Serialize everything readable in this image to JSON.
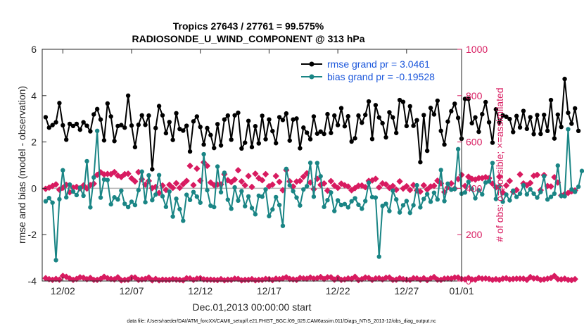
{
  "chart_data": {
    "type": "line",
    "title": [
      "Tropics 27643 / 27761 = 99.575%",
      "RADIOSONDE_U_WIND_COMPONENT @ 313 hPa"
    ],
    "xlabel": "Dec.01,2013 00:00:00 start",
    "ylabel_left": "rmse and bias (model - observation)",
    "ylabel_right": "# of obs: o=possible; ×=assimilated",
    "footer": "data file: /Users/raeder/DAI/ATM_forcXX/CAM6_setup/f.e21.FHIST_BGC.f09_025.CAM6assim.011/Diags_NTrS_2013-12/obs_diag_output.nc",
    "xlim": [
      0.5,
      31
    ],
    "ylim_left": [
      -4,
      6
    ],
    "ylim_right": [
      0,
      1000
    ],
    "x_ticks": [
      {
        "value": 2,
        "label": "12/02"
      },
      {
        "value": 7,
        "label": "12/07"
      },
      {
        "value": 12,
        "label": "12/12"
      },
      {
        "value": 17,
        "label": "12/17"
      },
      {
        "value": 22,
        "label": "12/22"
      },
      {
        "value": 27,
        "label": "12/27"
      },
      {
        "value": 31,
        "label": "01/01"
      }
    ],
    "y_ticks_left": [
      -4,
      -2,
      0,
      2,
      4,
      6
    ],
    "y_ticks_right": [
      0,
      200,
      400,
      600,
      800,
      1000
    ],
    "legend": {
      "position": "top-right",
      "entries": [
        "rmse grand pr = 3.0461",
        "bias grand pr = -0.19528"
      ]
    },
    "colors": {
      "rmse": "#000000",
      "bias": "#1a8585",
      "obs": "#d81b60",
      "legend_text": "#1a56db",
      "zero_line": "#b4b4b4"
    },
    "x_start": 0.75,
    "x_step": 0.25,
    "series": [
      {
        "name": "rmse",
        "axis": "left",
        "values": [
          3.07,
          2.62,
          2.73,
          2.85,
          3.68,
          2.72,
          2.1,
          2.78,
          2.69,
          2.78,
          2.53,
          2.85,
          2.7,
          2.46,
          3.19,
          3.42,
          2.97,
          2.07,
          3.66,
          3.1,
          2.04,
          2.69,
          2.73,
          2.62,
          4.0,
          2.71,
          1.78,
          2.74,
          3.15,
          2.74,
          3.14,
          0.82,
          2.6,
          3.55,
          3.15,
          2.38,
          2.86,
          2.09,
          3.24,
          2.56,
          2.49,
          2.7,
          1.59,
          2.89,
          3.1,
          2.65,
          1.89,
          2.6,
          2.3,
          1.74,
          2.77,
          1.85,
          2.97,
          3.14,
          2.1,
          3.15,
          3.26,
          1.72,
          1.97,
          2.91,
          1.78,
          2.68,
          1.94,
          3.13,
          2.12,
          2.97,
          2.47,
          1.95,
          3.07,
          2.95,
          3.23,
          2.06,
          2.97,
          3.01,
          1.73,
          2.62,
          2.4,
          2.12,
          3.1,
          2.36,
          2.45,
          2.35,
          3.2,
          2.39,
          3.14,
          2.73,
          3.46,
          2.68,
          3.11,
          2.02,
          2.16,
          3.14,
          2.83,
          3.17,
          3.75,
          2.13,
          3.59,
          3.06,
          2.81,
          2.2,
          3.28,
          3.06,
          2.39,
          3.81,
          3.73,
          2.69,
          3.54,
          2.7,
          2.94,
          1.13,
          3.16,
          1.62,
          3.47,
          3.19,
          3.78,
          2.48,
          1.89,
          2.88,
          3.33,
          3.65,
          3.04,
          2.14,
          3.86,
          3.86,
          2.81,
          3.06,
          2.44,
          3.2,
          3.72,
          2.85,
          1.97,
          3.41,
          2.84,
          3.15,
          3.09,
          2.99,
          2.43,
          3.12,
          2.63,
          3.34,
          2.57,
          3.07,
          2.34,
          3.16,
          2.35,
          3.17,
          2.48,
          3.81,
          2.15,
          3.18,
          2.65,
          4.72,
          3.26,
          2.79,
          3.45,
          2.48
        ]
      },
      {
        "name": "bias",
        "axis": "left",
        "values": [
          -0.56,
          -0.42,
          -0.62,
          -3.1,
          -0.47,
          0.78,
          -0.39,
          0.16,
          -0.14,
          -0.29,
          0.03,
          -0.32,
          1.17,
          -0.82,
          0.47,
          2.48,
          -0.4,
          0.38,
          0.36,
          -0.69,
          -0.39,
          -0.48,
          -0.1,
          -0.67,
          -0.81,
          -0.58,
          -0.72,
          -0.08,
          0.72,
          -0.6,
          0.56,
          -0.51,
          -0.27,
          0.57,
          -0.34,
          -0.8,
          -0.14,
          -1.22,
          -0.45,
          -0.9,
          -1.4,
          -0.28,
          -0.5,
          -0.16,
          -0.36,
          -0.62,
          1.47,
          -0.08,
          -0.75,
          -0.81,
          0.94,
          -0.17,
          0.67,
          -0.49,
          -0.88,
          0.04,
          -0.53,
          -0.12,
          -0.77,
          -0.35,
          -0.85,
          -1.12,
          -0.32,
          -0.36,
          -0.05,
          -1.2,
          -0.91,
          -0.38,
          -0.72,
          -1.62,
          0.84,
          0.13,
          -0.12,
          -0.4,
          -0.74,
          -0.05,
          0.09,
          1.1,
          -0.36,
          1.09,
          0.52,
          -0.8,
          -0.51,
          -0.18,
          -0.98,
          -0.52,
          -0.72,
          -0.68,
          -0.82,
          -0.56,
          -0.43,
          -0.71,
          -0.88,
          -0.55,
          0.24,
          -0.38,
          -0.4,
          -2.95,
          -0.76,
          -0.67,
          -0.98,
          -0.1,
          -0.48,
          -1.04,
          -0.73,
          -0.55,
          -1.06,
          -0.73,
          0.13,
          -0.82,
          -0.46,
          -0.25,
          -0.58,
          -0.19,
          -0.48,
          0.79,
          -0.55,
          0.2,
          -0.06,
          -0.03,
          1.69,
          -0.23,
          -0.18,
          0.28,
          -0.03,
          -0.43,
          -0.09,
          -0.26,
          0.25,
          0.3,
          1.09,
          -0.46,
          0.09,
          -0.58,
          -0.27,
          -0.52,
          -0.1,
          -0.37,
          -0.23,
          0.13,
          -0.26,
          -0.04,
          -0.23,
          -0.4,
          -0.16,
          0.52,
          -0.48,
          -0.37,
          -0.23,
          0.98,
          -0.33,
          -0.34,
          2.55,
          -0.05,
          -0.15,
          0.07,
          0.75
        ]
      },
      {
        "name": "obs_assimilated",
        "axis": "right",
        "values": [
          398,
          403,
          410,
          417,
          394,
          402,
          415,
          383,
          403,
          406,
          400,
          412,
          399,
          414,
          420,
          458,
          469,
          460,
          462,
          461,
          470,
          455,
          449,
          461,
          463,
          443,
          430,
          470,
          439,
          416,
          432,
          401,
          406,
          380,
          412,
          393,
          415,
          402,
          422,
          402,
          418,
          432,
          497,
          414,
          485,
          433,
          512,
          497,
          425,
          414,
          416,
          417,
          461,
          435,
          427,
          438,
          478,
          430,
          413,
          453,
          406,
          463,
          444,
          435,
          461,
          409,
          416,
          453,
          428,
          392,
          479,
          430,
          408,
          429,
          432,
          450,
          465,
          425,
          396,
          441,
          415,
          421,
          390,
          431,
          412,
          402,
          420,
          413,
          408,
          392,
          401,
          411,
          412,
          405,
          432,
          434,
          441,
          404,
          421,
          417,
          402,
          410,
          394,
          430,
          399,
          409,
          393,
          414,
          391,
          386,
          413,
          395,
          408,
          411,
          433,
          421,
          384,
          404,
          421,
          399,
          440,
          458,
          410,
          450,
          441,
          438,
          444,
          444,
          448,
          444,
          420,
          404,
          450,
          382,
          412,
          432,
          385,
          393,
          460,
          421,
          413,
          423,
          454,
          458,
          392,
          457,
          410,
          408,
          448,
          425,
          369,
          375,
          380,
          387,
          391
        ]
      },
      {
        "name": "obs_possible",
        "axis": "right",
        "values": [
          12,
          8,
          5,
          9,
          6,
          22,
          18,
          11,
          5,
          9,
          16,
          14,
          8,
          13,
          5,
          5,
          9,
          18,
          12,
          9,
          7,
          16,
          3,
          5,
          6,
          15,
          15,
          5,
          7,
          9,
          15,
          3,
          9,
          3,
          6,
          5,
          5,
          8,
          6,
          5,
          3,
          12,
          11,
          5,
          10,
          12,
          7,
          6,
          6,
          5,
          4,
          8,
          3,
          6,
          5,
          10,
          9,
          3,
          5,
          5,
          8,
          3,
          5,
          5,
          9,
          8,
          4,
          10,
          8,
          11,
          16,
          9,
          7,
          5,
          13,
          11,
          10,
          15,
          10,
          12,
          17,
          9,
          16,
          16,
          6,
          14,
          5,
          7,
          11,
          9,
          18,
          4,
          8,
          15,
          13,
          5,
          11,
          12,
          7,
          14,
          15,
          5,
          6,
          12,
          8,
          6,
          5,
          12,
          11,
          6,
          12,
          4,
          11,
          17,
          6,
          5,
          10,
          11,
          10,
          15,
          15,
          9,
          7,
          13,
          7,
          6,
          13,
          10,
          11,
          9,
          5,
          8,
          5,
          10,
          12,
          7,
          9,
          10,
          10,
          10,
          5,
          17,
          11,
          12,
          5,
          7,
          10,
          13,
          22,
          8,
          7,
          10,
          5,
          4,
          8
        ]
      }
    ]
  }
}
